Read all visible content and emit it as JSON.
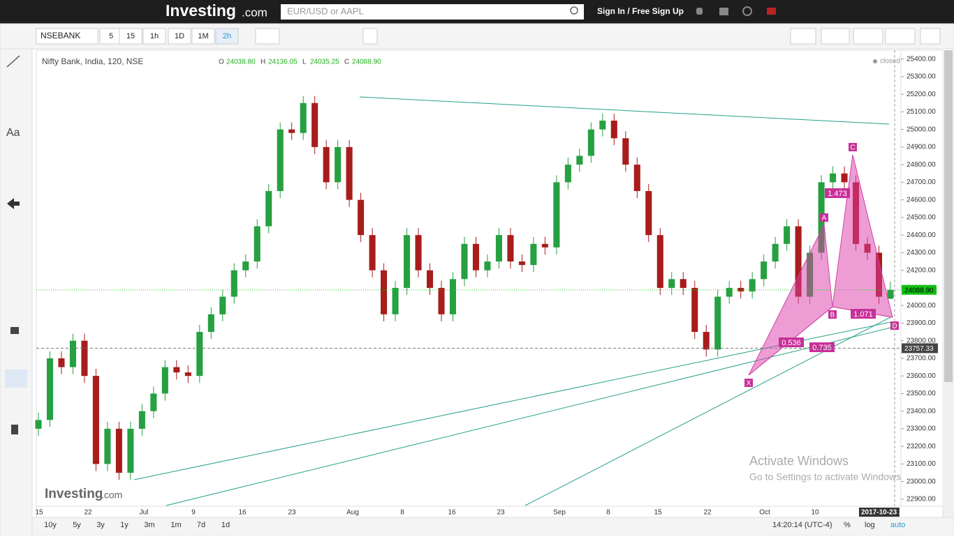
{
  "ui": {
    "logo": "Investing",
    "logo_suffix": ".com",
    "search": "EUR/USD or AAPL",
    "signin": "Sign In / Free Sign Up",
    "symbol": "NSEBANK",
    "intervals": [
      "5",
      "15",
      "1h",
      "1D",
      "1M",
      "2h"
    ],
    "text_tool": "Aa",
    "ranges": [
      "10y",
      "5y",
      "3y",
      "1y",
      "3m",
      "1m",
      "7d",
      "1d"
    ],
    "clock": "14:20:14 (UTC-4)",
    "pct": "%",
    "log": "log",
    "auto": "auto",
    "watermark": "Investing",
    "watermark_suffix": ".com",
    "activate_title": "Activate Windows",
    "activate_sub": "Go to Settings to activate Windows"
  },
  "chart_data": {
    "type": "candlestick",
    "title": "Nifty Bank, India, 120, NSE",
    "status": "closed",
    "legend": [
      {
        "key": "O",
        "value": "24038.80"
      },
      {
        "key": "H",
        "value": "24136.05"
      },
      {
        "key": "L",
        "value": "24035.25"
      },
      {
        "key": "C",
        "value": "24088.90"
      }
    ],
    "ylim": [
      22860,
      25450
    ],
    "yticks": [
      {
        "value": 25400,
        "label": "25400.00"
      },
      {
        "value": 25300,
        "label": "25300.00"
      },
      {
        "value": 25200,
        "label": "25200.00"
      },
      {
        "value": 25100,
        "label": "25100.00"
      },
      {
        "value": 25000,
        "label": "25000.00"
      },
      {
        "value": 24900,
        "label": "24900.00"
      },
      {
        "value": 24800,
        "label": "24800.00"
      },
      {
        "value": 24700,
        "label": "24700.00"
      },
      {
        "value": 24600,
        "label": "24600.00"
      },
      {
        "value": 24500,
        "label": "24500.00"
      },
      {
        "value": 24400,
        "label": "24400.00"
      },
      {
        "value": 24300,
        "label": "24300.00"
      },
      {
        "value": 24200,
        "label": "24200.00"
      },
      {
        "value": 24100,
        "label": "24100.00"
      },
      {
        "value": 24000,
        "label": "24000.00"
      },
      {
        "value": 23900,
        "label": "23900.00"
      },
      {
        "value": 23800,
        "label": "23800.00"
      },
      {
        "value": 23700,
        "label": "23700.00"
      },
      {
        "value": 23600,
        "label": "23600.00"
      },
      {
        "value": 23500,
        "label": "23500.00"
      },
      {
        "value": 23400,
        "label": "23400.00"
      },
      {
        "value": 23300,
        "label": "23300.00"
      },
      {
        "value": 23200,
        "label": "23200.00"
      },
      {
        "value": 23100,
        "label": "23100.00"
      },
      {
        "value": 23000,
        "label": "23000.00"
      },
      {
        "value": 22900,
        "label": "22900.00"
      }
    ],
    "xticks": [
      "15",
      "22",
      "Jul",
      "9",
      "16",
      "23",
      "Aug",
      "8",
      "16",
      "23",
      "Sep",
      "8",
      "15",
      "22",
      "Oct",
      "10"
    ],
    "current_date": "2017-10-23 2",
    "last_price": {
      "value": 24088.9,
      "label": "24088.90"
    },
    "crosshair": {
      "value": 23757.33,
      "label": "23757.33"
    },
    "pattern_points": [
      "X",
      "A",
      "B",
      "C",
      "D"
    ],
    "pattern_ratios": [
      "0.536",
      "0.735",
      "1.473",
      "1.071"
    ],
    "candles": [
      [
        23300,
        23390,
        23260,
        23350
      ],
      [
        23350,
        23740,
        23310,
        23700
      ],
      [
        23700,
        23740,
        23610,
        23650
      ],
      [
        23650,
        23840,
        23610,
        23800
      ],
      [
        23800,
        23840,
        23560,
        23600
      ],
      [
        23600,
        23640,
        23060,
        23100
      ],
      [
        23100,
        23340,
        23060,
        23300
      ],
      [
        23300,
        23340,
        23010,
        23050
      ],
      [
        23050,
        23340,
        23010,
        23300
      ],
      [
        23300,
        23440,
        23260,
        23400
      ],
      [
        23400,
        23540,
        23360,
        23500
      ],
      [
        23500,
        23690,
        23460,
        23650
      ],
      [
        23650,
        23690,
        23580,
        23620
      ],
      [
        23620,
        23660,
        23560,
        23600
      ],
      [
        23600,
        23890,
        23560,
        23850
      ],
      [
        23850,
        23990,
        23810,
        23950
      ],
      [
        23950,
        24090,
        23910,
        24050
      ],
      [
        24050,
        24240,
        24010,
        24200
      ],
      [
        24200,
        24290,
        24160,
        24250
      ],
      [
        24250,
        24490,
        24210,
        24450
      ],
      [
        24450,
        24690,
        24410,
        24650
      ],
      [
        24650,
        25040,
        24610,
        25000
      ],
      [
        25000,
        25040,
        24940,
        24980
      ],
      [
        24980,
        25190,
        24940,
        25150
      ],
      [
        25150,
        25190,
        24860,
        24900
      ],
      [
        24900,
        24940,
        24660,
        24700
      ],
      [
        24700,
        24940,
        24660,
        24900
      ],
      [
        24900,
        24940,
        24560,
        24600
      ],
      [
        24600,
        24640,
        24360,
        24400
      ],
      [
        24400,
        24440,
        24160,
        24200
      ],
      [
        24200,
        24240,
        23910,
        23950
      ],
      [
        23950,
        24140,
        23910,
        24100
      ],
      [
        24100,
        24440,
        24060,
        24400
      ],
      [
        24400,
        24440,
        24160,
        24200
      ],
      [
        24200,
        24240,
        24060,
        24100
      ],
      [
        24100,
        24140,
        23910,
        23950
      ],
      [
        23950,
        24190,
        23910,
        24150
      ],
      [
        24150,
        24390,
        24110,
        24350
      ],
      [
        24350,
        24390,
        24160,
        24200
      ],
      [
        24200,
        24290,
        24160,
        24250
      ],
      [
        24250,
        24440,
        24210,
        24400
      ],
      [
        24400,
        24440,
        24210,
        24250
      ],
      [
        24250,
        24290,
        24190,
        24230
      ],
      [
        24230,
        24390,
        24190,
        24350
      ],
      [
        24350,
        24390,
        24290,
        24330
      ],
      [
        24330,
        24740,
        24290,
        24700
      ],
      [
        24700,
        24840,
        24660,
        24800
      ],
      [
        24800,
        24890,
        24760,
        24850
      ],
      [
        24850,
        25040,
        24810,
        25000
      ],
      [
        25000,
        25090,
        24960,
        25050
      ],
      [
        25050,
        25090,
        24910,
        24950
      ],
      [
        24950,
        24990,
        24760,
        24800
      ],
      [
        24800,
        24840,
        24610,
        24650
      ],
      [
        24650,
        24690,
        24360,
        24400
      ],
      [
        24400,
        24440,
        24060,
        24100
      ],
      [
        24100,
        24190,
        24060,
        24150
      ],
      [
        24150,
        24190,
        24060,
        24100
      ],
      [
        24100,
        24140,
        23810,
        23850
      ],
      [
        23850,
        23890,
        23710,
        23750
      ],
      [
        23750,
        24090,
        23710,
        24050
      ],
      [
        24050,
        24140,
        24010,
        24100
      ],
      [
        24100,
        24140,
        24040,
        24080
      ],
      [
        24080,
        24190,
        24040,
        24150
      ],
      [
        24150,
        24290,
        24110,
        24250
      ],
      [
        24250,
        24390,
        24210,
        24350
      ],
      [
        24350,
        24490,
        24310,
        24450
      ],
      [
        24450,
        24490,
        24010,
        24050
      ],
      [
        24050,
        24340,
        24010,
        24300
      ],
      [
        24300,
        24740,
        24260,
        24700
      ],
      [
        24700,
        24790,
        24660,
        24750
      ],
      [
        24750,
        24790,
        24660,
        24700
      ],
      [
        24700,
        24740,
        24310,
        24350
      ],
      [
        24350,
        24390,
        24260,
        24300
      ],
      [
        24300,
        24340,
        24010,
        24050
      ],
      [
        24038.8,
        24136.05,
        24035.25,
        24088.9
      ]
    ],
    "up_color": "#26a041",
    "down_color": "#a81c1c"
  }
}
